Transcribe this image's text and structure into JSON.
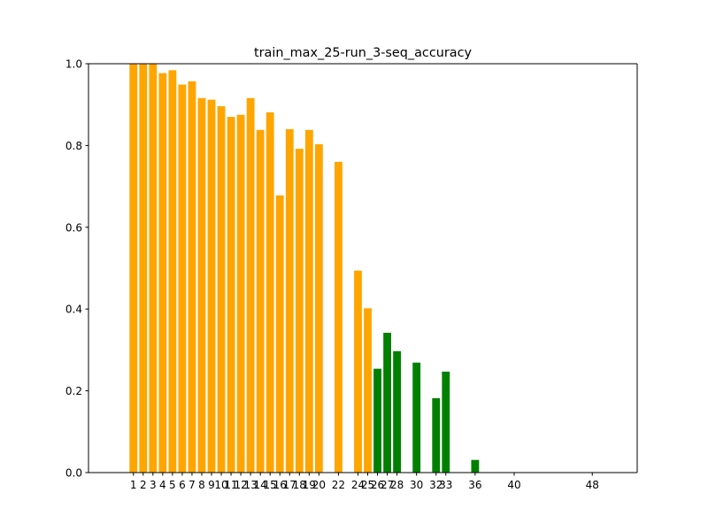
{
  "chart_data": {
    "type": "bar",
    "title": "train_max_25-run_3-seq_accuracy",
    "xlabel": "",
    "ylabel": "",
    "xlim": [
      -3.6,
      52.6
    ],
    "ylim": [
      0,
      1
    ],
    "y_ticks": [
      0.0,
      0.2,
      0.4,
      0.6,
      0.8,
      1.0
    ],
    "y_tick_labels": [
      "0.0",
      "0.2",
      "0.4",
      "0.6",
      "0.8",
      "1.0"
    ],
    "x_ticks": [
      1,
      2,
      3,
      4,
      5,
      6,
      7,
      8,
      9,
      10,
      11,
      12,
      13,
      14,
      15,
      16,
      17,
      18,
      19,
      20,
      22,
      24,
      25,
      26,
      27,
      28,
      30,
      32,
      33,
      36,
      40,
      48
    ],
    "x_tick_labels": [
      "1",
      "2",
      "3",
      "4",
      "5",
      "6",
      "7",
      "8",
      "9",
      "10",
      "11",
      "12",
      "13",
      "14",
      "15",
      "16",
      "17",
      "18",
      "19",
      "20",
      "22",
      "24",
      "25",
      "26",
      "27",
      "28",
      "30",
      "32",
      "33",
      "36",
      "40",
      "48"
    ],
    "grid": false,
    "colors": {
      "train": "#ffa500",
      "extrapolation": "#008000"
    },
    "bars": [
      {
        "x": 1,
        "value": 1.0,
        "color": "#ffa500"
      },
      {
        "x": 2,
        "value": 1.0,
        "color": "#ffa500"
      },
      {
        "x": 3,
        "value": 1.0,
        "color": "#ffa500"
      },
      {
        "x": 4,
        "value": 0.977,
        "color": "#ffa500"
      },
      {
        "x": 5,
        "value": 0.984,
        "color": "#ffa500"
      },
      {
        "x": 6,
        "value": 0.949,
        "color": "#ffa500"
      },
      {
        "x": 7,
        "value": 0.957,
        "color": "#ffa500"
      },
      {
        "x": 8,
        "value": 0.916,
        "color": "#ffa500"
      },
      {
        "x": 9,
        "value": 0.912,
        "color": "#ffa500"
      },
      {
        "x": 10,
        "value": 0.896,
        "color": "#ffa500"
      },
      {
        "x": 11,
        "value": 0.87,
        "color": "#ffa500"
      },
      {
        "x": 12,
        "value": 0.875,
        "color": "#ffa500"
      },
      {
        "x": 13,
        "value": 0.916,
        "color": "#ffa500"
      },
      {
        "x": 14,
        "value": 0.838,
        "color": "#ffa500"
      },
      {
        "x": 15,
        "value": 0.881,
        "color": "#ffa500"
      },
      {
        "x": 16,
        "value": 0.678,
        "color": "#ffa500"
      },
      {
        "x": 17,
        "value": 0.84,
        "color": "#ffa500"
      },
      {
        "x": 18,
        "value": 0.792,
        "color": "#ffa500"
      },
      {
        "x": 19,
        "value": 0.838,
        "color": "#ffa500"
      },
      {
        "x": 20,
        "value": 0.803,
        "color": "#ffa500"
      },
      {
        "x": 22,
        "value": 0.76,
        "color": "#ffa500"
      },
      {
        "x": 24,
        "value": 0.494,
        "color": "#ffa500"
      },
      {
        "x": 25,
        "value": 0.402,
        "color": "#ffa500"
      },
      {
        "x": 26,
        "value": 0.254,
        "color": "#008000"
      },
      {
        "x": 27,
        "value": 0.342,
        "color": "#008000"
      },
      {
        "x": 28,
        "value": 0.297,
        "color": "#008000"
      },
      {
        "x": 30,
        "value": 0.269,
        "color": "#008000"
      },
      {
        "x": 32,
        "value": 0.182,
        "color": "#008000"
      },
      {
        "x": 33,
        "value": 0.247,
        "color": "#008000"
      },
      {
        "x": 36,
        "value": 0.031,
        "color": "#008000"
      },
      {
        "x": 40,
        "value": 0.0,
        "color": "#008000"
      },
      {
        "x": 48,
        "value": 0.0,
        "color": "#008000"
      }
    ]
  }
}
